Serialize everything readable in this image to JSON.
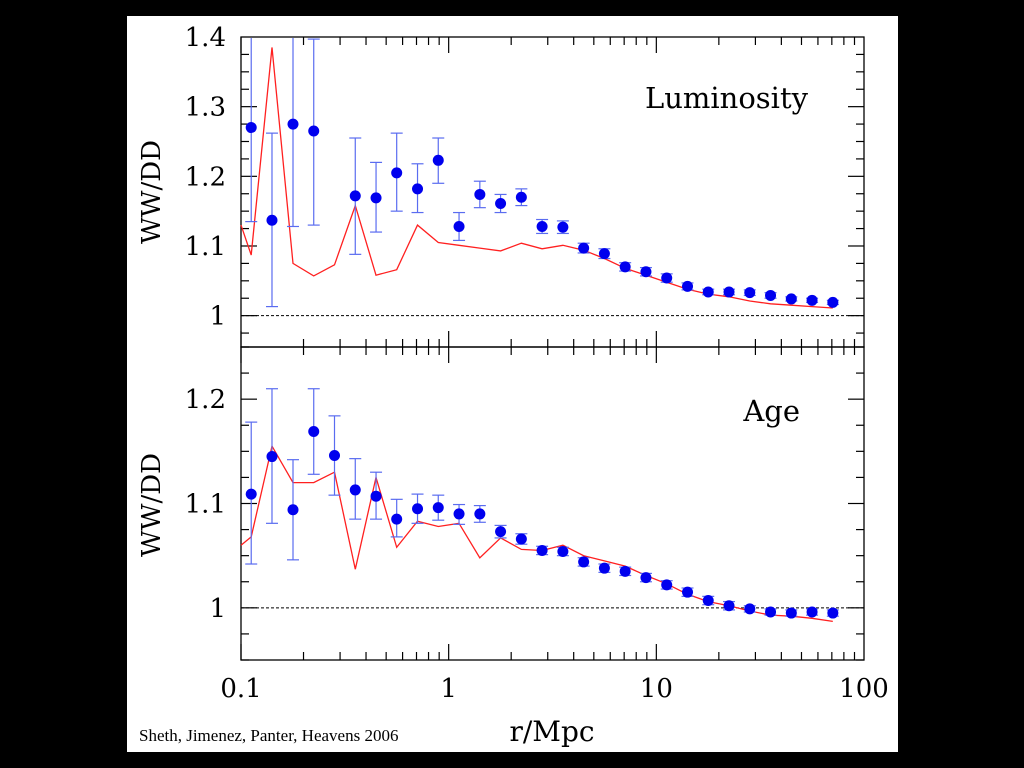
{
  "credit": "Sheth, Jimenez, Panter, Heavens 2006",
  "x_axis_label": "r/Mpc",
  "x_tick_labels": [
    "0.1",
    "1",
    "10",
    "100"
  ],
  "colors": {
    "points": "#0000ee",
    "errorbars": "#5a6cf0",
    "line": "#ff2020",
    "reference": "#000000"
  },
  "chart_data": [
    {
      "type": "scatter",
      "panel_label": "Luminosity",
      "ylabel": "WW/DD",
      "xlabel": "r/Mpc",
      "x_scale": "log",
      "xlim": [
        0.1,
        100
      ],
      "ylim": [
        0.955,
        1.4
      ],
      "y_ticks": [
        1,
        1.1,
        1.2,
        1.3,
        1.4
      ],
      "y_tick_labels": [
        "1",
        "1.1",
        "1.2",
        "1.3",
        "1.4"
      ],
      "reference_line": 1,
      "x": [
        0.112,
        0.141,
        0.178,
        0.224,
        0.355,
        0.447,
        0.562,
        0.708,
        0.891,
        1.122,
        1.413,
        1.778,
        2.239,
        2.818,
        3.548,
        4.467,
        5.623,
        7.079,
        8.913,
        11.22,
        14.13,
        17.78,
        22.39,
        28.18,
        35.48,
        44.67,
        56.23,
        70.79
      ],
      "y": [
        1.27,
        1.137,
        1.275,
        1.265,
        1.172,
        1.169,
        1.205,
        1.182,
        1.223,
        1.128,
        1.174,
        1.161,
        1.17,
        1.128,
        1.127,
        1.097,
        1.089,
        1.07,
        1.063,
        1.054,
        1.042,
        1.034,
        1.034,
        1.033,
        1.029,
        1.024,
        1.022,
        1.019
      ],
      "y_err_low": [
        1.135,
        1.013,
        1.128,
        1.13,
        1.088,
        1.12,
        1.15,
        1.148,
        1.19,
        1.108,
        1.155,
        1.148,
        1.158,
        1.118,
        1.118,
        1.09,
        1.082,
        1.064,
        1.057,
        1.048,
        1.037,
        1.03,
        1.03,
        1.029,
        1.025,
        1.021,
        1.019,
        1.016
      ],
      "y_err_high": [
        1.4,
        1.262,
        1.4,
        1.397,
        1.255,
        1.22,
        1.262,
        1.218,
        1.255,
        1.148,
        1.193,
        1.174,
        1.182,
        1.138,
        1.136,
        1.104,
        1.096,
        1.076,
        1.069,
        1.06,
        1.047,
        1.038,
        1.038,
        1.037,
        1.033,
        1.027,
        1.025,
        1.022
      ],
      "line": {
        "x": [
          0.1,
          0.112,
          0.141,
          0.178,
          0.224,
          0.282,
          0.355,
          0.447,
          0.562,
          0.708,
          0.891,
          1.122,
          1.413,
          1.778,
          2.239,
          2.818,
          3.548,
          4.467,
          5.623,
          7.079,
          8.913,
          11.22,
          14.13,
          17.78,
          22.39,
          28.18,
          35.48,
          44.67,
          56.23,
          70.79
        ],
        "y": [
          1.13,
          1.087,
          1.385,
          1.075,
          1.057,
          1.073,
          1.158,
          1.058,
          1.066,
          1.13,
          1.105,
          1.101,
          1.097,
          1.093,
          1.104,
          1.096,
          1.101,
          1.094,
          1.082,
          1.068,
          1.058,
          1.048,
          1.038,
          1.031,
          1.027,
          1.021,
          1.017,
          1.015,
          1.013,
          1.011
        ]
      }
    },
    {
      "type": "scatter",
      "panel_label": "Age",
      "ylabel": "WW/DD",
      "xlabel": "r/Mpc",
      "x_scale": "log",
      "xlim": [
        0.1,
        100
      ],
      "ylim": [
        0.95,
        1.25
      ],
      "y_ticks": [
        1,
        1.1,
        1.2
      ],
      "y_tick_labels": [
        "1",
        "1.1",
        "1.2"
      ],
      "reference_line": 1,
      "x": [
        0.112,
        0.141,
        0.178,
        0.224,
        0.282,
        0.355,
        0.447,
        0.562,
        0.708,
        0.891,
        1.122,
        1.413,
        1.778,
        2.239,
        2.818,
        3.548,
        4.467,
        5.623,
        7.079,
        8.913,
        11.22,
        14.13,
        17.78,
        22.39,
        28.18,
        35.48,
        44.67,
        56.23,
        70.79
      ],
      "y": [
        1.109,
        1.145,
        1.094,
        1.169,
        1.146,
        1.113,
        1.107,
        1.085,
        1.095,
        1.096,
        1.09,
        1.09,
        1.073,
        1.066,
        1.055,
        1.054,
        1.044,
        1.038,
        1.035,
        1.029,
        1.022,
        1.015,
        1.007,
        1.002,
        0.999,
        0.996,
        0.995,
        0.996,
        0.995
      ],
      "y_err_low": [
        1.042,
        1.081,
        1.046,
        1.128,
        1.108,
        1.085,
        1.085,
        1.068,
        1.081,
        1.084,
        1.08,
        1.082,
        1.067,
        1.061,
        1.051,
        1.05,
        1.04,
        1.034,
        1.031,
        1.025,
        1.018,
        1.011,
        1.003,
        0.998,
        0.996,
        0.993,
        0.992,
        0.993,
        0.992
      ],
      "y_err_high": [
        1.178,
        1.21,
        1.142,
        1.21,
        1.184,
        1.143,
        1.13,
        1.104,
        1.109,
        1.108,
        1.099,
        1.098,
        1.079,
        1.071,
        1.059,
        1.058,
        1.048,
        1.042,
        1.039,
        1.033,
        1.026,
        1.019,
        1.011,
        1.006,
        1.002,
        0.999,
        0.998,
        0.999,
        0.998
      ],
      "line": {
        "x": [
          0.1,
          0.112,
          0.141,
          0.178,
          0.224,
          0.282,
          0.355,
          0.447,
          0.562,
          0.708,
          0.891,
          1.122,
          1.413,
          1.778,
          2.239,
          2.818,
          3.548,
          4.467,
          5.623,
          7.079,
          8.913,
          11.22,
          14.13,
          17.78,
          22.39,
          28.18,
          35.48,
          44.67,
          56.23,
          70.79
        ],
        "y": [
          1.06,
          1.068,
          1.155,
          1.12,
          1.12,
          1.13,
          1.037,
          1.125,
          1.058,
          1.083,
          1.078,
          1.081,
          1.048,
          1.067,
          1.056,
          1.055,
          1.06,
          1.05,
          1.045,
          1.04,
          1.031,
          1.023,
          1.013,
          1.006,
          1.002,
          0.997,
          0.993,
          0.992,
          0.99,
          0.987
        ]
      }
    }
  ]
}
